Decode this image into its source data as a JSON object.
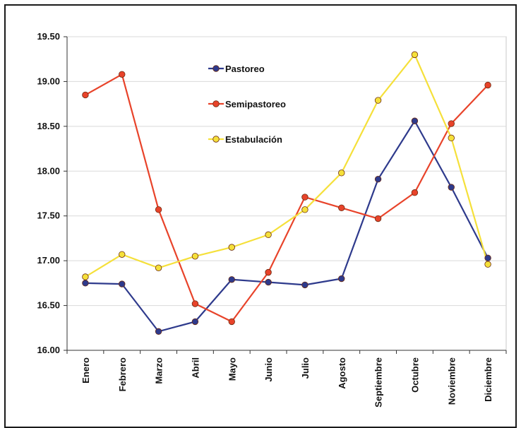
{
  "chart_data": {
    "type": "line",
    "title": "",
    "xlabel": "",
    "ylabel": "",
    "ylim": [
      16.0,
      19.5
    ],
    "yticks": [
      "16.00",
      "16.50",
      "17.00",
      "17.50",
      "18.00",
      "18.50",
      "19.00",
      "19.50"
    ],
    "categories": [
      "Enero",
      "Febrero",
      "Marzo",
      "Abril",
      "Mayo",
      "Junio",
      "Julio",
      "Agosto",
      "Septiembre",
      "Octubre",
      "Noviembre",
      "Diciembre"
    ],
    "grid": "horizontal",
    "legend_position": "upper-left-inside",
    "series": [
      {
        "name": "Pastoreo",
        "color": "#2e3a8c",
        "values": [
          16.75,
          16.74,
          16.21,
          16.32,
          16.79,
          16.76,
          16.73,
          16.8,
          17.91,
          18.56,
          17.82,
          17.03
        ]
      },
      {
        "name": "Semipastoreo",
        "color": "#e8432a",
        "values": [
          18.85,
          19.08,
          17.57,
          16.52,
          16.32,
          16.87,
          17.71,
          17.59,
          17.47,
          17.76,
          18.53,
          18.96
        ]
      },
      {
        "name": "Estabulación",
        "color": "#f5e03a",
        "values": [
          16.82,
          17.07,
          16.92,
          17.05,
          17.15,
          17.29,
          17.57,
          17.98,
          18.79,
          19.3,
          18.37,
          16.96
        ]
      }
    ]
  }
}
